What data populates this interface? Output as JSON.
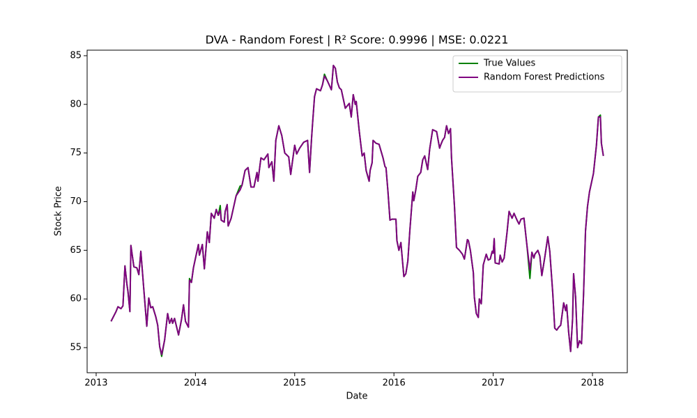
{
  "chart_data": {
    "type": "line",
    "title": "DVA - Random Forest | R² Score: 0.9996 | MSE: 0.0221",
    "x_label": "Date",
    "y_label": "Stock Price",
    "x": [
      2013.15,
      2013.2,
      2013.22,
      2013.25,
      2013.27,
      2013.29,
      2013.31,
      2013.32,
      2013.34,
      2013.35,
      2013.38,
      2013.41,
      2013.43,
      2013.45,
      2013.48,
      2013.51,
      2013.53,
      2013.55,
      2013.57,
      2013.6,
      2013.62,
      2013.64,
      2013.66,
      2013.69,
      2013.72,
      2013.74,
      2013.76,
      2013.77,
      2013.79,
      2013.83,
      2013.86,
      2013.88,
      2013.9,
      2013.93,
      2013.94,
      2013.96,
      2013.98,
      2014.03,
      2014.04,
      2014.07,
      2014.09,
      2014.12,
      2014.14,
      2014.16,
      2014.19,
      2014.21,
      2014.23,
      2014.25,
      2014.26,
      2014.29,
      2014.3,
      2014.32,
      2014.33,
      2014.36,
      2014.41,
      2014.45,
      2014.47,
      2014.5,
      2014.53,
      2014.56,
      2014.59,
      2014.62,
      2014.63,
      2014.66,
      2014.69,
      2014.73,
      2014.74,
      2014.77,
      2014.79,
      2014.81,
      2014.84,
      2014.87,
      2014.9,
      2014.94,
      2014.96,
      2014.98,
      2015.0,
      2015.02,
      2015.05,
      2015.09,
      2015.13,
      2015.15,
      2015.17,
      2015.18,
      2015.2,
      2015.22,
      2015.26,
      2015.28,
      2015.3,
      2015.33,
      2015.37,
      2015.39,
      2015.41,
      2015.43,
      2015.45,
      2015.47,
      2015.51,
      2015.55,
      2015.57,
      2015.59,
      2015.61,
      2015.62,
      2015.65,
      2015.68,
      2015.7,
      2015.72,
      2015.75,
      2015.76,
      2015.78,
      2015.79,
      2015.82,
      2015.85,
      2015.89,
      2015.91,
      2015.92,
      2015.94,
      2015.96,
      2015.98,
      2016.02,
      2016.03,
      2016.05,
      2016.07,
      2016.1,
      2016.12,
      2016.14,
      2016.16,
      2016.19,
      2016.2,
      2016.22,
      2016.24,
      2016.27,
      2016.29,
      2016.31,
      2016.34,
      2016.36,
      2016.39,
      2016.43,
      2016.46,
      2016.47,
      2016.49,
      2016.51,
      2016.53,
      2016.55,
      2016.57,
      2016.58,
      2016.61,
      2016.63,
      2016.66,
      2016.69,
      2016.71,
      2016.74,
      2016.75,
      2016.77,
      2016.8,
      2016.81,
      2016.83,
      2016.85,
      2016.86,
      2016.88,
      2016.9,
      2016.93,
      2016.95,
      2016.97,
      2016.99,
      2017.0,
      2017.01,
      2017.02,
      2017.06,
      2017.07,
      2017.09,
      2017.11,
      2017.14,
      2017.16,
      2017.19,
      2017.21,
      2017.24,
      2017.26,
      2017.28,
      2017.31,
      2017.34,
      2017.37,
      2017.39,
      2017.41,
      2017.42,
      2017.45,
      2017.47,
      2017.49,
      2017.52,
      2017.55,
      2017.57,
      2017.6,
      2017.62,
      2017.64,
      2017.66,
      2017.68,
      2017.71,
      2017.73,
      2017.74,
      2017.76,
      2017.78,
      2017.8,
      2017.81,
      2017.83,
      2017.85,
      2017.87,
      2017.89,
      2017.91,
      2017.93,
      2017.95,
      2017.97,
      2018.01,
      2018.04,
      2018.06,
      2018.08,
      2018.09,
      2018.11
    ],
    "series": [
      {
        "name": "True Values",
        "color": "#008000",
        "values": [
          57.7,
          58.7,
          59.2,
          59.0,
          59.3,
          63.4,
          61.5,
          60.8,
          58.7,
          65.5,
          63.3,
          63.2,
          62.5,
          64.9,
          61.0,
          57.2,
          60.1,
          59.1,
          59.2,
          58.2,
          57.3,
          55.1,
          54.1,
          55.8,
          58.5,
          57.5,
          58.0,
          57.5,
          58.0,
          56.3,
          57.9,
          59.4,
          57.7,
          57.1,
          62.1,
          61.7,
          63.2,
          65.6,
          64.5,
          65.6,
          63.1,
          66.9,
          65.8,
          68.8,
          68.3,
          69.2,
          68.6,
          69.6,
          68.1,
          67.9,
          69.0,
          69.7,
          67.5,
          68.3,
          70.6,
          71.6,
          71.7,
          73.2,
          73.5,
          71.5,
          71.5,
          73.0,
          72.1,
          74.5,
          74.3,
          74.9,
          73.5,
          74.1,
          72.1,
          76.3,
          77.8,
          76.8,
          75.0,
          74.6,
          72.8,
          74.3,
          75.8,
          74.9,
          75.5,
          76.1,
          76.3,
          73.0,
          76.5,
          78.0,
          80.8,
          81.6,
          81.4,
          82.0,
          83.1,
          82.4,
          81.5,
          84.0,
          83.7,
          82.3,
          81.7,
          81.5,
          79.6,
          80.1,
          78.7,
          81.0,
          80.0,
          80.3,
          77.3,
          74.7,
          75.0,
          73.2,
          72.1,
          73.2,
          74.0,
          76.3,
          76.0,
          75.9,
          74.5,
          73.6,
          73.5,
          71.0,
          68.1,
          68.2,
          68.2,
          66.0,
          65.0,
          65.8,
          62.3,
          62.6,
          63.9,
          67.0,
          71.0,
          70.1,
          71.2,
          72.6,
          73.0,
          74.3,
          74.7,
          73.3,
          75.4,
          77.4,
          77.2,
          75.5,
          75.8,
          76.3,
          76.6,
          77.8,
          77.0,
          77.5,
          74.5,
          69.5,
          65.3,
          65.0,
          64.6,
          64.1,
          66.1,
          66.0,
          65.0,
          62.7,
          60.2,
          58.5,
          58.1,
          60.0,
          59.5,
          63.5,
          64.6,
          64.0,
          64.1,
          64.9,
          64.7,
          66.2,
          63.7,
          63.6,
          64.5,
          63.8,
          64.2,
          66.9,
          69.0,
          68.3,
          68.8,
          68.1,
          67.7,
          68.2,
          68.3,
          65.5,
          62.1,
          64.8,
          64.2,
          64.6,
          65.0,
          64.4,
          62.4,
          64.3,
          66.4,
          64.9,
          60.6,
          57.0,
          56.8,
          57.1,
          57.3,
          59.6,
          58.8,
          59.4,
          56.6,
          54.6,
          58.0,
          62.6,
          60.2,
          55.0,
          55.7,
          55.4,
          60.4,
          67.0,
          69.5,
          71.0,
          72.9,
          75.8,
          78.7,
          78.9,
          76.0,
          74.7
        ]
      },
      {
        "name": "Random Forest Predictions",
        "color": "#800080",
        "values": [
          57.7,
          58.7,
          59.2,
          59.0,
          59.3,
          63.4,
          61.5,
          60.8,
          58.7,
          65.5,
          63.3,
          63.2,
          62.5,
          64.9,
          61.0,
          57.2,
          60.1,
          59.1,
          59.2,
          58.2,
          57.3,
          55.1,
          54.3,
          55.8,
          58.5,
          57.5,
          58.0,
          57.5,
          58.0,
          56.3,
          57.9,
          59.4,
          57.7,
          57.1,
          61.9,
          61.7,
          63.2,
          65.6,
          64.5,
          65.6,
          63.1,
          66.9,
          65.8,
          68.8,
          68.3,
          69.2,
          68.6,
          69.1,
          68.1,
          67.9,
          69.0,
          69.7,
          67.5,
          68.3,
          70.6,
          71.2,
          71.7,
          73.2,
          73.5,
          71.5,
          71.5,
          73.0,
          72.1,
          74.5,
          74.3,
          74.9,
          73.5,
          74.1,
          72.1,
          76.3,
          77.8,
          76.8,
          75.0,
          74.6,
          72.8,
          74.3,
          75.8,
          74.9,
          75.5,
          76.1,
          76.3,
          73.0,
          76.5,
          78.0,
          80.8,
          81.6,
          81.4,
          82.0,
          82.9,
          82.4,
          81.5,
          84.0,
          83.7,
          82.3,
          81.7,
          81.5,
          79.6,
          80.1,
          78.7,
          81.0,
          80.0,
          80.3,
          77.3,
          74.7,
          75.0,
          73.2,
          72.1,
          73.2,
          74.0,
          76.3,
          76.0,
          75.9,
          74.5,
          73.6,
          73.5,
          71.0,
          68.1,
          68.2,
          68.2,
          66.0,
          65.0,
          65.8,
          62.3,
          62.6,
          63.9,
          67.0,
          71.0,
          70.1,
          71.2,
          72.6,
          73.0,
          74.3,
          74.7,
          73.3,
          75.4,
          77.4,
          77.2,
          75.5,
          75.8,
          76.3,
          76.6,
          77.8,
          77.0,
          77.5,
          74.5,
          69.5,
          65.3,
          65.0,
          64.6,
          64.1,
          66.1,
          66.0,
          65.0,
          62.7,
          60.2,
          58.5,
          58.1,
          60.0,
          59.5,
          63.5,
          64.6,
          64.0,
          64.1,
          64.9,
          64.7,
          66.2,
          63.7,
          63.6,
          64.5,
          63.8,
          64.2,
          66.9,
          69.0,
          68.3,
          68.8,
          68.1,
          67.7,
          68.2,
          68.3,
          65.5,
          63.0,
          64.8,
          64.2,
          64.6,
          65.0,
          64.4,
          62.4,
          64.3,
          66.4,
          64.9,
          60.6,
          57.0,
          56.8,
          57.1,
          57.3,
          59.6,
          58.8,
          59.4,
          56.6,
          54.6,
          58.0,
          62.6,
          60.2,
          55.0,
          55.7,
          55.4,
          60.4,
          67.0,
          69.5,
          71.0,
          72.9,
          75.8,
          78.7,
          78.7,
          76.0,
          74.7
        ]
      }
    ],
    "xlim": [
      2012.909,
      2018.351
    ],
    "xticks": [
      2013,
      2014,
      2015,
      2016,
      2017,
      2018
    ],
    "ylim": [
      52.42,
      85.57
    ],
    "yticks": [
      55,
      60,
      65,
      70,
      75,
      80,
      85
    ],
    "legend": "upper right"
  }
}
